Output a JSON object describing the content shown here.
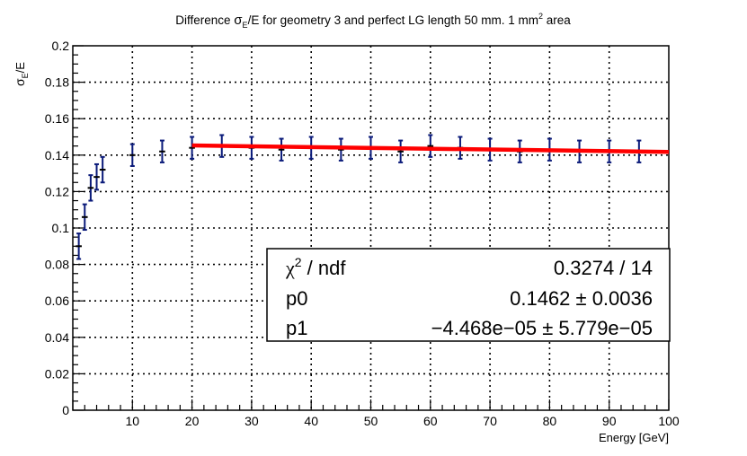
{
  "chart_data": {
    "type": "scatter",
    "title": {
      "prefix": "Difference ",
      "sym": "σ",
      "sub": "E",
      "mid": "/E for geometry 3 and perfect LG length 50 mm. 1 mm",
      "sup": "2",
      "suffix": " area"
    },
    "xlabel": "Energy [GeV]",
    "ylabel": {
      "sym": "σ",
      "sub": "E",
      "rest": "/E"
    },
    "xlim": [
      0,
      100
    ],
    "ylim": [
      0,
      0.2
    ],
    "xticks": [
      "10",
      "20",
      "30",
      "40",
      "50",
      "60",
      "70",
      "80",
      "90",
      "100"
    ],
    "yticks": [
      "0",
      "0.02",
      "0.04",
      "0.06",
      "0.08",
      "0.1",
      "0.12",
      "0.14",
      "0.16",
      "0.18",
      "0.2"
    ],
    "grid": true,
    "series": [
      {
        "marker_color": "#0a1a7a",
        "points": [
          {
            "x": 1,
            "y": 0.09,
            "xerr": 0.5,
            "yerr": 0.007
          },
          {
            "x": 2,
            "y": 0.106,
            "xerr": 0.5,
            "yerr": 0.007
          },
          {
            "x": 3,
            "y": 0.122,
            "xerr": 0.5,
            "yerr": 0.007
          },
          {
            "x": 4,
            "y": 0.128,
            "xerr": 0.5,
            "yerr": 0.007
          },
          {
            "x": 5,
            "y": 0.132,
            "xerr": 0.5,
            "yerr": 0.007
          },
          {
            "x": 10,
            "y": 0.14,
            "xerr": 0.5,
            "yerr": 0.006
          },
          {
            "x": 15,
            "y": 0.142,
            "xerr": 0.5,
            "yerr": 0.006
          },
          {
            "x": 20,
            "y": 0.144,
            "xerr": 0.5,
            "yerr": 0.006
          },
          {
            "x": 25,
            "y": 0.145,
            "xerr": 0.5,
            "yerr": 0.006
          },
          {
            "x": 30,
            "y": 0.144,
            "xerr": 0.5,
            "yerr": 0.006
          },
          {
            "x": 35,
            "y": 0.143,
            "xerr": 0.5,
            "yerr": 0.006
          },
          {
            "x": 40,
            "y": 0.144,
            "xerr": 0.5,
            "yerr": 0.006
          },
          {
            "x": 45,
            "y": 0.143,
            "xerr": 0.5,
            "yerr": 0.006
          },
          {
            "x": 50,
            "y": 0.144,
            "xerr": 0.5,
            "yerr": 0.006
          },
          {
            "x": 55,
            "y": 0.142,
            "xerr": 0.5,
            "yerr": 0.006
          },
          {
            "x": 60,
            "y": 0.145,
            "xerr": 0.5,
            "yerr": 0.006
          },
          {
            "x": 65,
            "y": 0.144,
            "xerr": 0.5,
            "yerr": 0.006
          },
          {
            "x": 70,
            "y": 0.143,
            "xerr": 0.5,
            "yerr": 0.006
          },
          {
            "x": 75,
            "y": 0.142,
            "xerr": 0.5,
            "yerr": 0.006
          },
          {
            "x": 80,
            "y": 0.143,
            "xerr": 0.5,
            "yerr": 0.006
          },
          {
            "x": 85,
            "y": 0.142,
            "xerr": 0.5,
            "yerr": 0.006
          },
          {
            "x": 90,
            "y": 0.142,
            "xerr": 0.5,
            "yerr": 0.006
          },
          {
            "x": 95,
            "y": 0.142,
            "xerr": 0.5,
            "yerr": 0.006
          }
        ]
      }
    ],
    "fit": {
      "color": "#ff0000",
      "x_range": [
        20,
        100
      ],
      "p0": 0.1462,
      "p1": -4.468e-05
    },
    "stats_box": {
      "placement": "bottom-right",
      "rows": [
        {
          "sym": "χ",
          "sup": "2",
          "rest": " / ndf",
          "value": "0.3274 / 14"
        },
        {
          "sym": "",
          "sup": "",
          "rest": "p0",
          "value": "0.1462 ± 0.0036"
        },
        {
          "sym": "",
          "sup": "",
          "rest": "p1",
          "value": "−4.468e−05 ± 5.779e−05"
        }
      ]
    }
  }
}
